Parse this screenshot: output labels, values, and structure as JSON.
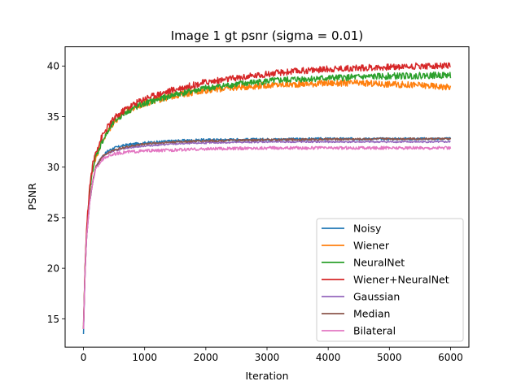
{
  "chart_data": {
    "type": "line",
    "title": "Image 1 gt psnr (sigma = 0.01)",
    "xlabel": "Iteration",
    "ylabel": "PSNR",
    "xlim": [
      -300,
      6300
    ],
    "ylim": [
      12.2,
      41.9
    ],
    "xticks": [
      0,
      1000,
      2000,
      3000,
      4000,
      5000,
      6000
    ],
    "yticks": [
      15,
      20,
      25,
      30,
      35,
      40
    ],
    "grid": false,
    "legend_position": "lower right",
    "series": [
      {
        "name": "Noisy",
        "color": "#1f77b4",
        "noise": 0.12,
        "x": [
          0,
          25,
          50,
          100,
          150,
          200,
          300,
          400,
          500,
          700,
          1000,
          1500,
          2000,
          3000,
          4000,
          5000,
          6000
        ],
        "y": [
          13.5,
          19.5,
          23.0,
          26.5,
          28.5,
          30.0,
          31.0,
          31.6,
          31.9,
          32.2,
          32.4,
          32.6,
          32.7,
          32.75,
          32.8,
          32.8,
          32.8
        ]
      },
      {
        "name": "Wiener",
        "color": "#ff7f0e",
        "noise": 0.32,
        "x": [
          0,
          25,
          50,
          100,
          150,
          200,
          300,
          400,
          500,
          700,
          1000,
          1500,
          2000,
          2500,
          3000,
          3500,
          4000,
          4500,
          5000,
          5500,
          6000
        ],
        "y": [
          14.0,
          20.0,
          23.5,
          27.5,
          29.8,
          31.0,
          32.5,
          33.5,
          34.5,
          35.5,
          36.3,
          37.1,
          37.6,
          37.9,
          38.1,
          38.2,
          38.3,
          38.3,
          38.2,
          38.1,
          37.9
        ]
      },
      {
        "name": "NeuralNet",
        "color": "#2ca02c",
        "noise": 0.32,
        "x": [
          0,
          25,
          50,
          100,
          150,
          200,
          300,
          400,
          500,
          700,
          1000,
          1500,
          2000,
          2500,
          3000,
          3500,
          4000,
          4500,
          5000,
          5500,
          6000
        ],
        "y": [
          14.0,
          20.0,
          23.5,
          27.5,
          29.8,
          31.0,
          32.5,
          33.5,
          34.5,
          35.5,
          36.3,
          37.2,
          37.8,
          38.2,
          38.5,
          38.7,
          38.8,
          38.9,
          39.0,
          39.05,
          39.1
        ]
      },
      {
        "name": "Wiener+NeuralNet",
        "color": "#d62728",
        "noise": 0.32,
        "x": [
          0,
          25,
          50,
          100,
          150,
          200,
          300,
          400,
          500,
          700,
          1000,
          1500,
          2000,
          2500,
          3000,
          3500,
          4000,
          4500,
          5000,
          5500,
          6000
        ],
        "y": [
          14.0,
          20.0,
          23.8,
          28.0,
          30.2,
          31.5,
          33.0,
          34.0,
          34.8,
          35.8,
          36.8,
          37.7,
          38.4,
          38.8,
          39.2,
          39.5,
          39.7,
          39.8,
          39.9,
          40.0,
          40.0
        ]
      },
      {
        "name": "Gaussian",
        "color": "#9467bd",
        "noise": 0.08,
        "x": [
          0,
          25,
          50,
          100,
          150,
          200,
          300,
          400,
          500,
          700,
          1000,
          1500,
          2000,
          3000,
          4000,
          5000,
          6000
        ],
        "y": [
          14.0,
          19.5,
          23.0,
          26.5,
          28.5,
          30.0,
          31.0,
          31.4,
          31.6,
          31.9,
          32.1,
          32.3,
          32.4,
          32.5,
          32.5,
          32.5,
          32.5
        ]
      },
      {
        "name": "Median",
        "color": "#8c564b",
        "noise": 0.1,
        "x": [
          0,
          25,
          50,
          100,
          150,
          200,
          300,
          400,
          500,
          700,
          1000,
          1500,
          2000,
          3000,
          4000,
          5000,
          6000
        ],
        "y": [
          14.5,
          19.5,
          23.0,
          26.5,
          28.5,
          30.0,
          31.0,
          31.4,
          31.7,
          32.0,
          32.3,
          32.5,
          32.6,
          32.7,
          32.75,
          32.8,
          32.8
        ]
      },
      {
        "name": "Bilateral",
        "color": "#e377c2",
        "noise": 0.15,
        "x": [
          0,
          25,
          50,
          100,
          150,
          200,
          300,
          400,
          500,
          700,
          1000,
          1500,
          2000,
          3000,
          4000,
          5000,
          6000
        ],
        "y": [
          14.0,
          19.5,
          23.0,
          26.5,
          28.5,
          29.8,
          30.7,
          31.1,
          31.3,
          31.5,
          31.6,
          31.7,
          31.8,
          31.9,
          31.9,
          31.9,
          31.9
        ]
      }
    ]
  }
}
